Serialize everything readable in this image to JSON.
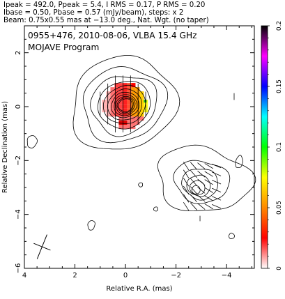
{
  "header": {
    "line1": "Ipeak = 492.0, Ppeak = 5.4, I RMS = 0.17, P RMS = 0.20",
    "line2": "Ibase = 0.50, Pbase = 0.57 (mJy/beam), steps: x 2",
    "line3": "Beam: 0.75x0.55 mas at −13.0 deg., Nat. Wgt. (no taper)"
  },
  "plot": {
    "title_line1": "0955+476, 2010-08-06, VLBA 15.4 GHz",
    "title_line2": "MOJAVE Program",
    "xlabel": "Relative R.A. (mas)",
    "ylabel": "Relative Declination (mas)",
    "xlim": [
      4,
      -5.1
    ],
    "ylim": [
      -6,
      3
    ],
    "xticks": [
      4,
      2,
      0,
      -2,
      -4
    ],
    "yticks": [
      2,
      0,
      -2,
      -4,
      -6
    ],
    "xtick_labels": [
      "4",
      "2",
      "0",
      "−2",
      "−4"
    ],
    "ytick_labels": [
      "2",
      "0",
      "−2",
      "−4",
      "−6"
    ]
  },
  "colorbar": {
    "ticks": [
      0,
      0.05,
      0.1,
      0.15,
      0.2
    ],
    "tick_labels": [
      "0",
      "0.05",
      "0.1",
      "0.15",
      "0.2"
    ],
    "colors": [
      "#ffffff",
      "#ff0000",
      "#ff8800",
      "#ffff00",
      "#00ff00",
      "#00ffff",
      "#0000ff",
      "#ff00ff",
      "#000000"
    ]
  },
  "chart_data": {
    "type": "heatmap",
    "title": "0955+476, 2010-08-06, VLBA 15.4 GHz",
    "subtitle": "MOJAVE Program",
    "xlabel": "Relative R.A. (mas)",
    "ylabel": "Relative Declination (mas)",
    "xlim": [
      4,
      -5.1
    ],
    "ylim": [
      -6,
      3
    ],
    "components": [
      {
        "x": 0.1,
        "y": 0.1,
        "peak": 492.0
      },
      {
        "x": -3.0,
        "y": -2.9
      }
    ],
    "beam": {
      "major": 0.75,
      "minor": 0.55,
      "pa": -13.0
    },
    "colorbar_range": [
      0,
      0.2
    ]
  }
}
